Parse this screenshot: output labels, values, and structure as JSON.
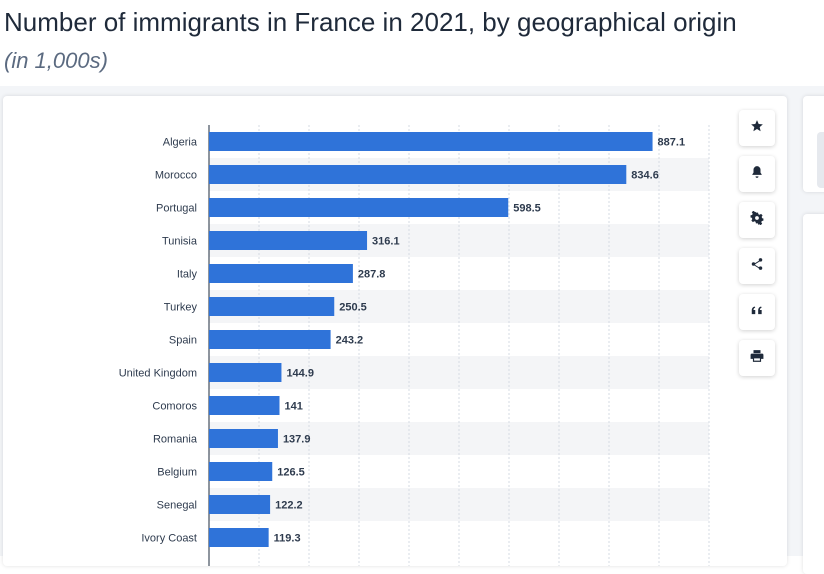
{
  "page": {
    "title": "Number of immigrants in France in 2021, by geographical origin",
    "subtitle": "(in 1,000s)"
  },
  "toolbar": {
    "buttons": [
      {
        "icon": "star-icon"
      },
      {
        "icon": "bell-icon"
      },
      {
        "icon": "gear-icon"
      },
      {
        "icon": "share-icon"
      },
      {
        "icon": "quote-icon"
      },
      {
        "icon": "print-icon"
      }
    ]
  },
  "colors": {
    "bar": "#2f73d9",
    "stripe": "#f4f5f7",
    "grid": "#d6dbe3",
    "axis": "#1e2b3c"
  },
  "chart_data": {
    "type": "bar",
    "orientation": "horizontal",
    "categories": [
      "Algeria",
      "Morocco",
      "Portugal",
      "Tunisia",
      "Italy",
      "Turkey",
      "Spain",
      "United Kingdom",
      "Comoros",
      "Romania",
      "Belgium",
      "Senegal",
      "Ivory Coast"
    ],
    "values": [
      887.1,
      834.6,
      598.5,
      316.1,
      287.8,
      250.5,
      243.2,
      144.9,
      141,
      137.9,
      126.5,
      122.2,
      119.3
    ],
    "value_labels": [
      "887.1",
      "834.6",
      "598.5",
      "316.1",
      "287.8",
      "250.5",
      "243.2",
      "144.9",
      "141",
      "137.9",
      "126.5",
      "122.2",
      "119.3"
    ],
    "xlim": [
      0,
      1000
    ],
    "grid": true,
    "legend": "none"
  }
}
